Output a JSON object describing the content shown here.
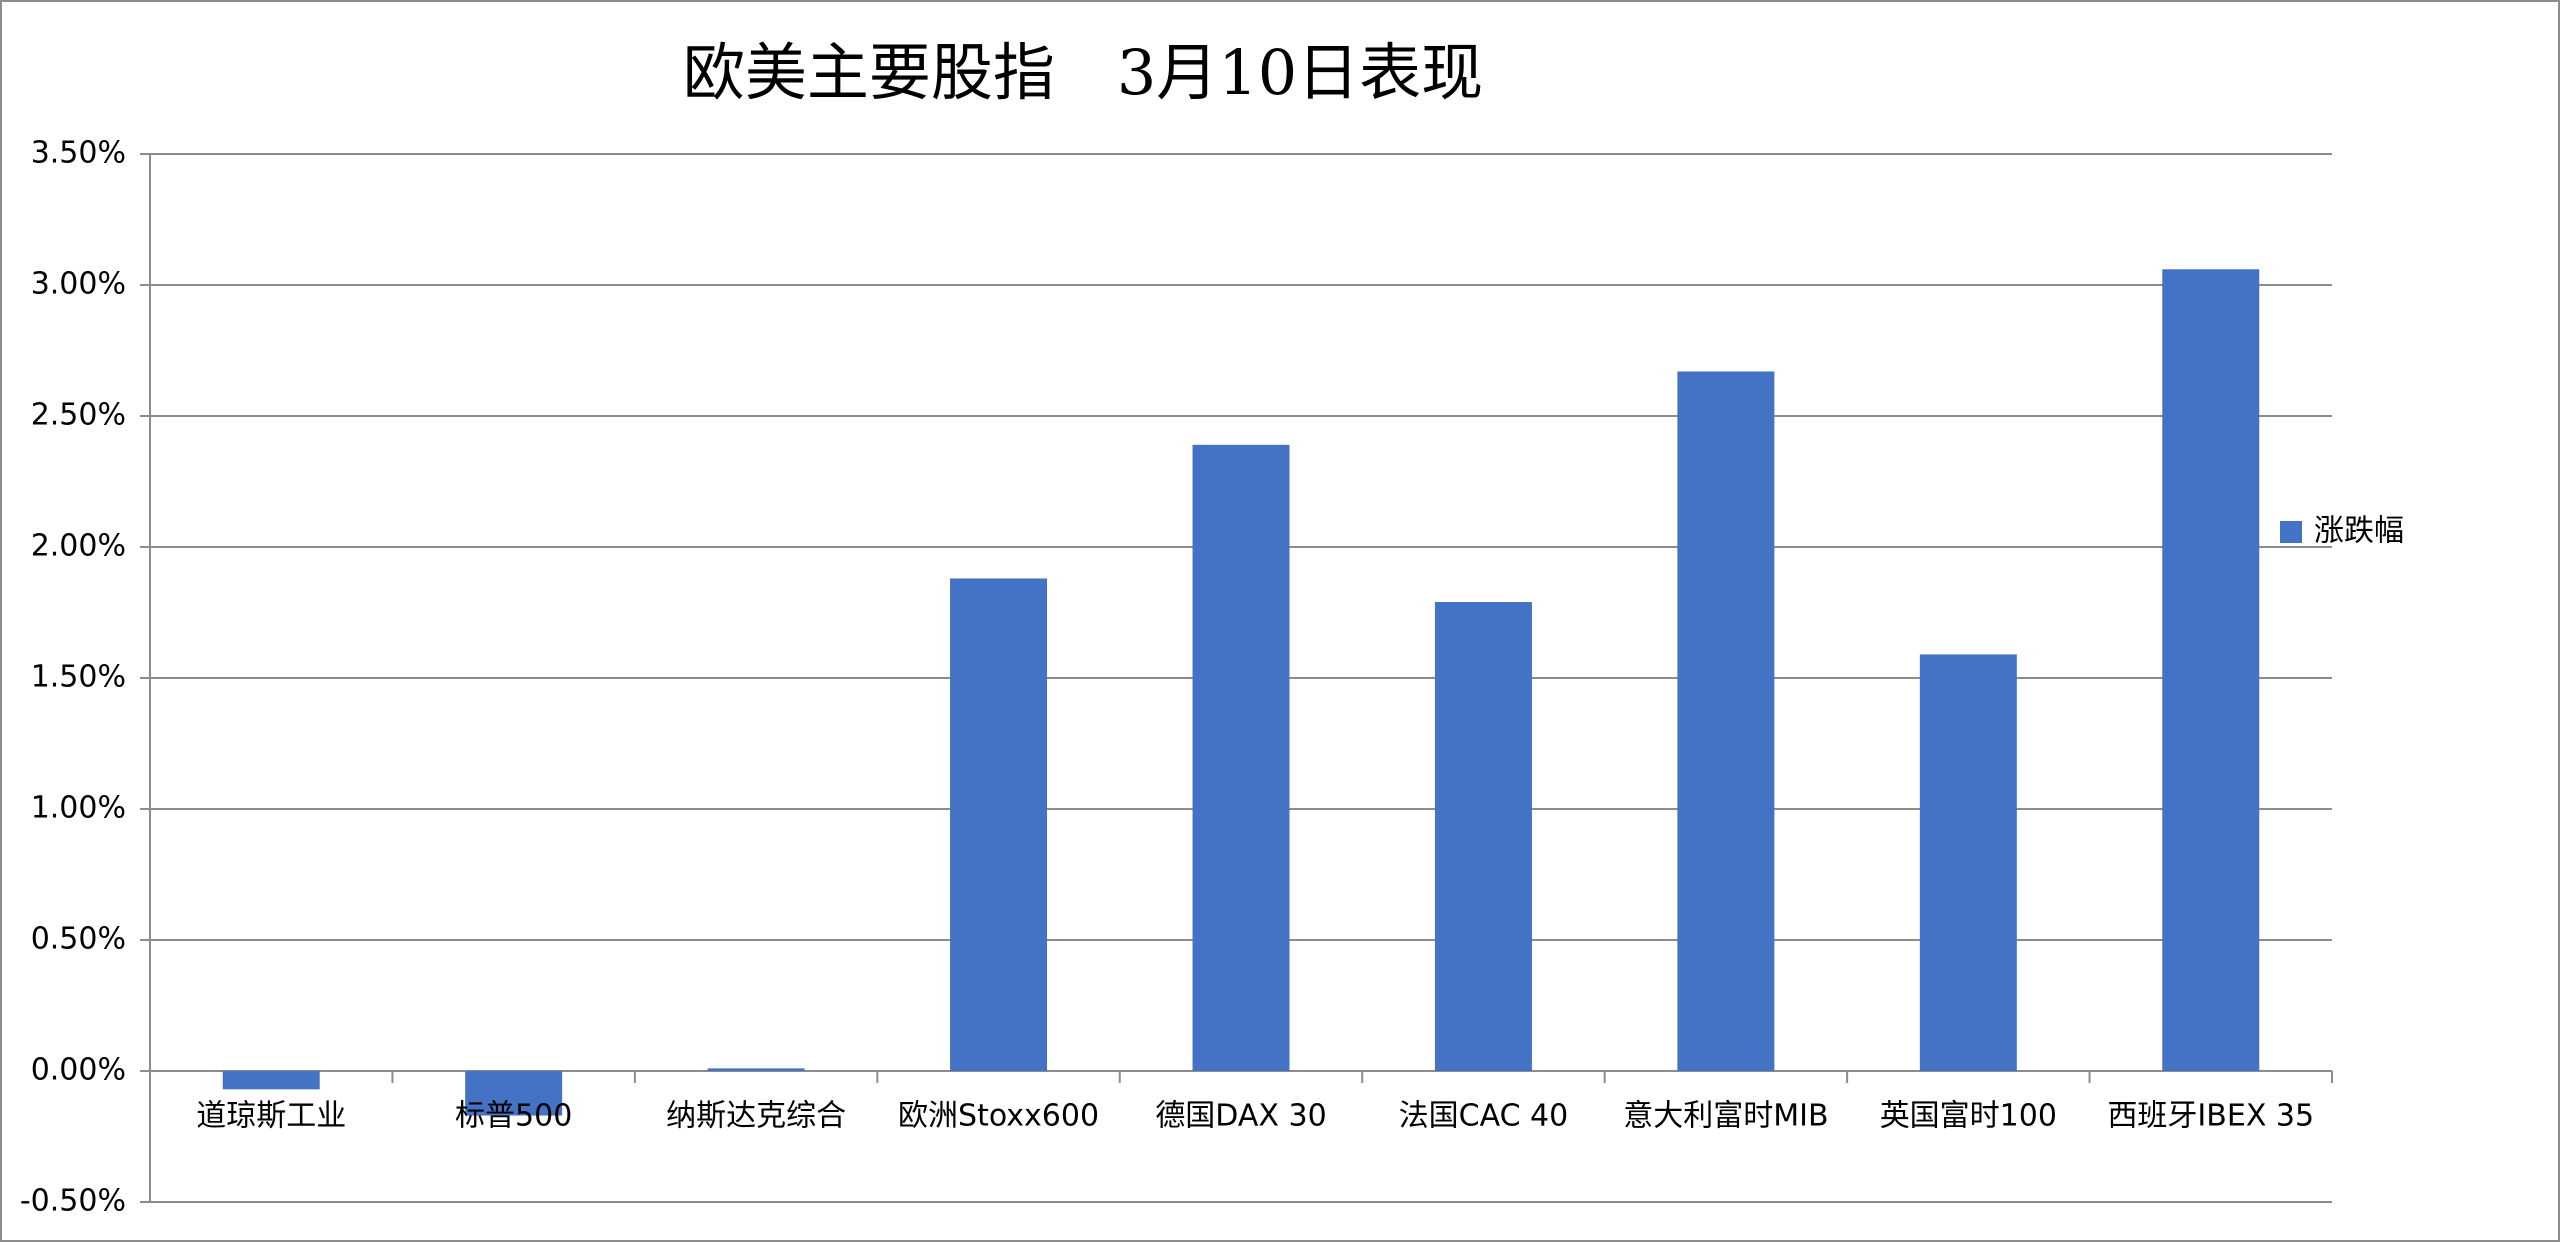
{
  "chart_data": {
    "type": "bar",
    "title": "欧美主要股指　3月10日表现",
    "categories": [
      "道琼斯工业",
      "标普500",
      "纳斯达克综合",
      "欧洲Stoxx600",
      "德国DAX 30",
      "法国CAC 40",
      "意大利富时MIB",
      "英国富时100",
      "西班牙IBEX 35"
    ],
    "series": [
      {
        "name": "涨跌幅",
        "color": "#4472c4",
        "values": [
          -0.07,
          -0.17,
          0.01,
          1.88,
          2.39,
          1.79,
          2.67,
          1.59,
          3.06
        ]
      }
    ],
    "ylim": [
      -0.5,
      3.5
    ],
    "yticks": [
      {
        "value": -0.5,
        "label": "-0.50%"
      },
      {
        "value": 0,
        "label": "0.00%"
      },
      {
        "value": 0.5,
        "label": "0.50%"
      },
      {
        "value": 1,
        "label": "1.00%"
      },
      {
        "value": 1.5,
        "label": "1.50%"
      },
      {
        "value": 2,
        "label": "2.00%"
      },
      {
        "value": 2.5,
        "label": "2.50%"
      },
      {
        "value": 3,
        "label": "3.00%"
      },
      {
        "value": 3.5,
        "label": "3.50%"
      }
    ],
    "grid": true,
    "legend": "right"
  }
}
